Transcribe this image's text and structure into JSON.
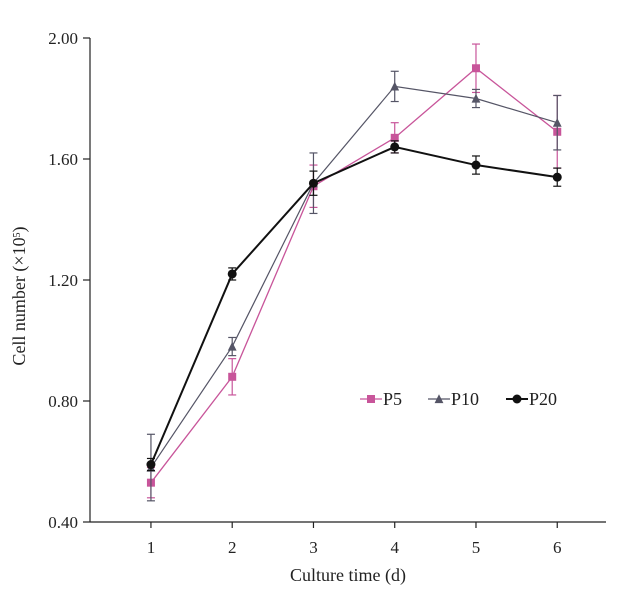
{
  "chart_data": {
    "type": "line",
    "xlabel": "Culture time (d)",
    "ylabel_main": "Cell number (×10",
    "ylabel_sup": "5",
    "ylabel_tail": ")",
    "x": [
      1,
      2,
      3,
      4,
      5,
      6
    ],
    "xlim": [
      0.25,
      6.6
    ],
    "ylim": [
      0.4,
      2.0
    ],
    "yticks": [
      0.4,
      0.8,
      1.2,
      1.6,
      2.0
    ],
    "ytick_labels": [
      "0.40",
      "0.80",
      "1.20",
      "1.60",
      "2.00"
    ],
    "xtick_labels": [
      "1",
      "2",
      "3",
      "4",
      "5",
      "6"
    ],
    "grid": false,
    "legend_position": "center-right",
    "series": [
      {
        "name": "P5",
        "color": "#c8559a",
        "marker": "square",
        "values": [
          0.53,
          0.88,
          1.51,
          1.67,
          1.9,
          1.69
        ],
        "errors": [
          0.05,
          0.06,
          0.07,
          0.05,
          0.08,
          0.12
        ]
      },
      {
        "name": "P10",
        "color": "#555566",
        "marker": "triangle",
        "values": [
          0.58,
          0.98,
          1.52,
          1.84,
          1.8,
          1.72
        ],
        "errors": [
          0.11,
          0.03,
          0.1,
          0.05,
          0.03,
          0.09
        ]
      },
      {
        "name": "P20",
        "color": "#111111",
        "marker": "circle",
        "values": [
          0.59,
          1.22,
          1.52,
          1.64,
          1.58,
          1.54
        ],
        "errors": [
          0.02,
          0.02,
          0.04,
          0.02,
          0.03,
          0.03
        ]
      }
    ]
  }
}
